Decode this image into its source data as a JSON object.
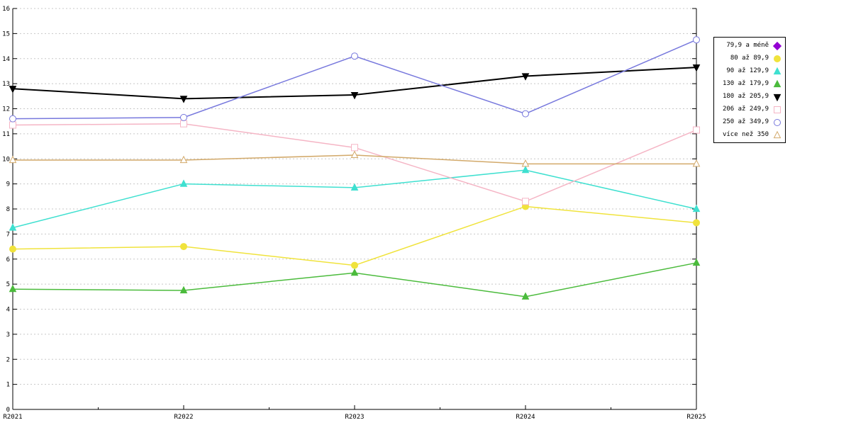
{
  "chart_data": {
    "type": "line",
    "title": "",
    "xlabel": "",
    "ylabel": "",
    "ylim": [
      0,
      16
    ],
    "yticks": [
      0,
      1,
      2,
      3,
      4,
      5,
      6,
      7,
      8,
      9,
      10,
      11,
      12,
      13,
      14,
      15,
      16
    ],
    "categories": [
      "R2021",
      "R2022",
      "R2023",
      "R2024",
      "R2025"
    ],
    "grid": "horizontal-dashed",
    "legend_position": "top-right-outside",
    "series": [
      {
        "name": "79,9 a méně",
        "marker": "diamond",
        "marker_filled": true,
        "color": "#9400d3",
        "values": []
      },
      {
        "name": "80 až 89,9",
        "marker": "circle",
        "marker_filled": true,
        "color": "#f0e33c",
        "values": [
          6.4,
          6.5,
          5.75,
          8.1,
          7.45
        ]
      },
      {
        "name": "90 až 129,9",
        "marker": "triangle-up",
        "marker_filled": true,
        "color": "#3fe0d0",
        "values": [
          7.25,
          9.0,
          8.85,
          9.55,
          8.0
        ]
      },
      {
        "name": "130 až 179,9",
        "marker": "triangle-up",
        "marker_filled": true,
        "color": "#4bbb3c",
        "values": [
          4.8,
          4.75,
          5.45,
          4.5,
          5.85
        ]
      },
      {
        "name": "180 až 205,9",
        "marker": "triangle-down",
        "marker_filled": true,
        "color": "#000000",
        "values": [
          12.8,
          12.4,
          12.55,
          13.3,
          13.65
        ]
      },
      {
        "name": "206 až 249,9",
        "marker": "square",
        "marker_filled": false,
        "color": "#f5b5c5",
        "values": [
          11.35,
          11.4,
          10.45,
          8.3,
          11.15
        ]
      },
      {
        "name": "250 až 349,9",
        "marker": "circle",
        "marker_filled": false,
        "color": "#7778dd",
        "values": [
          11.6,
          11.65,
          14.1,
          11.8,
          14.75
        ]
      },
      {
        "name": "více než 350",
        "marker": "triangle-up",
        "marker_filled": false,
        "color": "#d2a96a",
        "values": [
          9.95,
          9.95,
          10.15,
          9.8,
          9.8
        ]
      }
    ]
  }
}
